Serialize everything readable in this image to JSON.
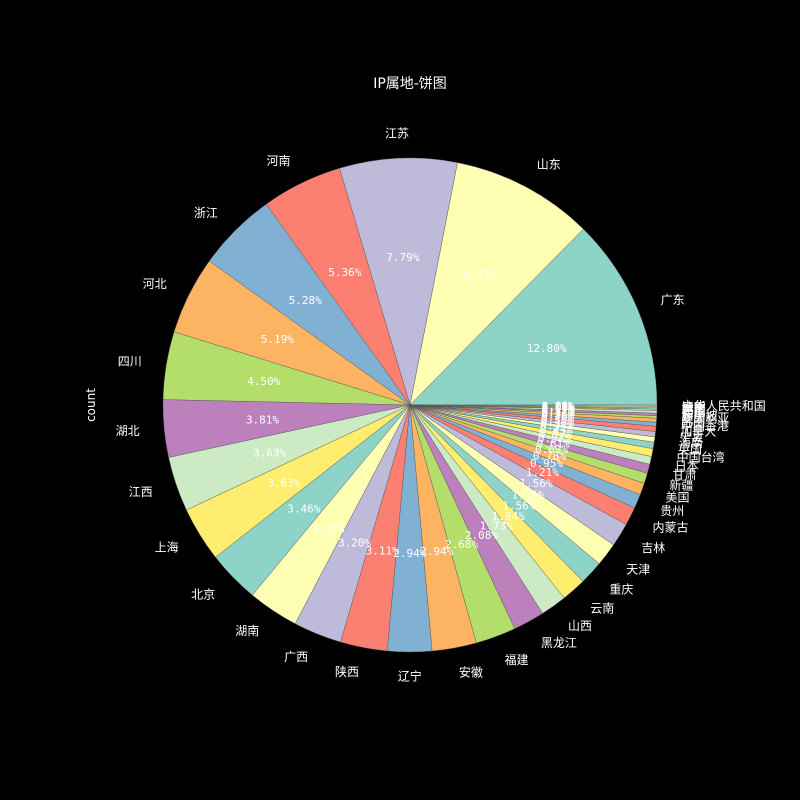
{
  "chart_data": {
    "type": "pie",
    "title": "IP属地-饼图",
    "ylabel": "count",
    "start_angle_deg": 0,
    "direction": "counterclockwise",
    "palette": [
      "#8dd3c7",
      "#ffffb3",
      "#bebada",
      "#fb8072",
      "#80b1d3",
      "#fdb462",
      "#b3de69",
      "#bc80bd",
      "#ccebc5",
      "#ffed6f"
    ],
    "slices": [
      {
        "label": "广东",
        "value": 12.8,
        "pct_text": "12.80%"
      },
      {
        "label": "山东",
        "value": 9.43,
        "pct_text": "9.43%"
      },
      {
        "label": "江苏",
        "value": 7.79,
        "pct_text": "7.79%"
      },
      {
        "label": "河南",
        "value": 5.36,
        "pct_text": "5.36%"
      },
      {
        "label": "浙江",
        "value": 5.28,
        "pct_text": "5.28%"
      },
      {
        "label": "河北",
        "value": 5.19,
        "pct_text": "5.19%"
      },
      {
        "label": "四川",
        "value": 4.5,
        "pct_text": "4.50%"
      },
      {
        "label": "湖北",
        "value": 3.81,
        "pct_text": "3.81%"
      },
      {
        "label": "江西",
        "value": 3.63,
        "pct_text": "3.63%"
      },
      {
        "label": "上海",
        "value": 3.63,
        "pct_text": "3.63%"
      },
      {
        "label": "北京",
        "value": 3.46,
        "pct_text": "3.46%"
      },
      {
        "label": "湖南",
        "value": 3.37,
        "pct_text": "3.37%"
      },
      {
        "label": "广西",
        "value": 3.2,
        "pct_text": "3.20%"
      },
      {
        "label": "陕西",
        "value": 3.11,
        "pct_text": "3.11%"
      },
      {
        "label": "辽宁",
        "value": 2.94,
        "pct_text": "2.94%"
      },
      {
        "label": "安徽",
        "value": 2.94,
        "pct_text": "2.94%"
      },
      {
        "label": "福建",
        "value": 2.68,
        "pct_text": "2.68%"
      },
      {
        "label": "黑龙江",
        "value": 2.08,
        "pct_text": "2.08%"
      },
      {
        "label": "山西",
        "value": 1.73,
        "pct_text": "1.73%"
      },
      {
        "label": "云南",
        "value": 1.64,
        "pct_text": "1.64%"
      },
      {
        "label": "重庆",
        "value": 1.56,
        "pct_text": "1.56%"
      },
      {
        "label": "天津",
        "value": 1.56,
        "pct_text": "1.56%"
      },
      {
        "label": "吉林",
        "value": 1.56,
        "pct_text": "1.56%"
      },
      {
        "label": "内蒙古",
        "value": 1.21,
        "pct_text": "1.21%"
      },
      {
        "label": "贵州",
        "value": 0.95,
        "pct_text": "0.95%"
      },
      {
        "label": "美国",
        "value": 0.78,
        "pct_text": "0.78%"
      },
      {
        "label": "新疆",
        "value": 0.69,
        "pct_text": "0.69%"
      },
      {
        "label": "甘肃",
        "value": 0.61,
        "pct_text": "0.61%"
      },
      {
        "label": "日本",
        "value": 0.52,
        "pct_text": "0.52%"
      },
      {
        "label": "中国台湾",
        "value": 0.52,
        "pct_text": "0.52%"
      },
      {
        "label": "英国",
        "value": 0.43,
        "pct_text": "0.43%"
      },
      {
        "label": "海南",
        "value": 0.35,
        "pct_text": "0.35%"
      },
      {
        "label": "宁夏",
        "value": 0.35,
        "pct_text": "0.35%"
      },
      {
        "label": "加拿大",
        "value": 0.35,
        "pct_text": "0.35%"
      },
      {
        "label": "中国香港",
        "value": 0.26,
        "pct_text": "0.26%"
      },
      {
        "label": "韩国",
        "value": 0.26,
        "pct_text": "0.26%"
      },
      {
        "label": "澳大利亚",
        "value": 0.17,
        "pct_text": "0.17%"
      },
      {
        "label": "新加坡",
        "value": 0.17,
        "pct_text": "0.17%"
      },
      {
        "label": "德国",
        "value": 0.17,
        "pct_text": "0.17%"
      },
      {
        "label": "西藏",
        "value": 0.09,
        "pct_text": "0.09%"
      },
      {
        "label": "越南",
        "value": 0.09,
        "pct_text": "0.09%"
      },
      {
        "label": "法国",
        "value": 0.09,
        "pct_text": "0.09%"
      },
      {
        "label": "中华人民共和国",
        "value": 0.09,
        "pct_text": "0.09%"
      }
    ]
  }
}
